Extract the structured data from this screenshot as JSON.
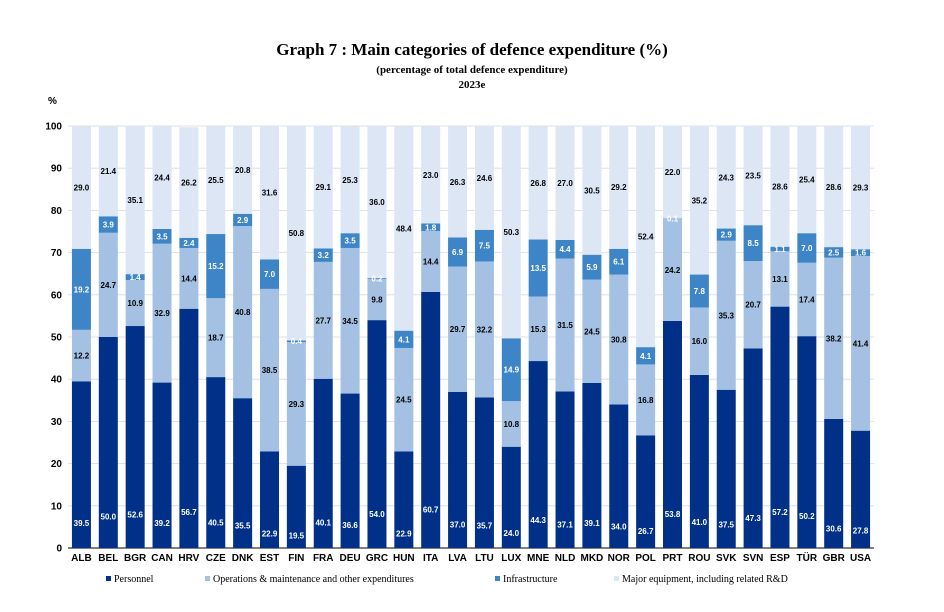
{
  "chart_data": {
    "type": "bar",
    "stacked": true,
    "title": "Graph 7 : Main categories of defence expenditure (%)",
    "subtitle": "(percentage of total defence expenditure)",
    "year_label": "2023e",
    "ylabel": "%",
    "ylim": [
      0,
      100
    ],
    "yticks": [
      0,
      10,
      20,
      30,
      40,
      50,
      60,
      70,
      80,
      90,
      100
    ],
    "grid": true,
    "legend_position": "bottom",
    "categories": [
      "ALB",
      "BEL",
      "BGR",
      "CAN",
      "HRV",
      "CZE",
      "DNK",
      "EST",
      "FIN",
      "FRA",
      "DEU",
      "GRC",
      "HUN",
      "ITA",
      "LVA",
      "LTU",
      "LUX",
      "MNE",
      "NLD",
      "MKD",
      "NOR",
      "POL",
      "PRT",
      "ROU",
      "SVK",
      "SVN",
      "ESP",
      "TÜR",
      "GBR",
      "USA"
    ],
    "series": [
      {
        "name": "Personnel",
        "color": "#003087",
        "label_color": "#ffffff",
        "values": [
          39.5,
          50.0,
          52.6,
          39.2,
          56.7,
          40.5,
          35.5,
          22.9,
          19.5,
          40.1,
          36.6,
          54.0,
          22.9,
          60.7,
          37.0,
          35.7,
          24.0,
          44.3,
          37.1,
          39.1,
          34.0,
          26.7,
          53.8,
          41.0,
          37.5,
          47.3,
          57.2,
          50.2,
          30.6,
          27.8
        ]
      },
      {
        "name": "Operations & maintenance and other expenditures",
        "color": "#a4c1e4",
        "label_color": "#000000",
        "values": [
          12.2,
          24.7,
          10.9,
          32.9,
          14.4,
          18.7,
          40.8,
          38.5,
          29.3,
          27.7,
          34.5,
          9.8,
          24.5,
          14.4,
          29.7,
          32.2,
          10.8,
          15.3,
          31.5,
          24.5,
          30.8,
          16.8,
          24.2,
          16.0,
          35.3,
          20.7,
          13.1,
          17.4,
          38.2,
          41.4
        ]
      },
      {
        "name": "Infrastructure",
        "color": "#3d85c6",
        "label_color": "#ffffff",
        "values": [
          19.2,
          3.9,
          1.4,
          3.5,
          2.4,
          15.2,
          2.9,
          7.0,
          0.4,
          3.2,
          3.5,
          0.2,
          4.1,
          1.8,
          6.9,
          7.5,
          14.9,
          13.5,
          4.4,
          5.9,
          6.1,
          4.1,
          0.1,
          7.8,
          2.9,
          8.5,
          1.1,
          7.0,
          2.5,
          1.6
        ]
      },
      {
        "name": "Major equipment, including related R&D",
        "color": "#dce6f5",
        "label_color": "#000000",
        "values": [
          29.0,
          21.4,
          35.1,
          24.4,
          26.2,
          25.5,
          20.8,
          31.6,
          50.8,
          29.1,
          25.3,
          36.0,
          48.4,
          23.0,
          26.3,
          24.6,
          50.3,
          26.8,
          27.0,
          30.5,
          29.2,
          52.4,
          22.0,
          35.2,
          24.3,
          23.5,
          28.6,
          25.4,
          28.6,
          29.3
        ]
      }
    ]
  }
}
